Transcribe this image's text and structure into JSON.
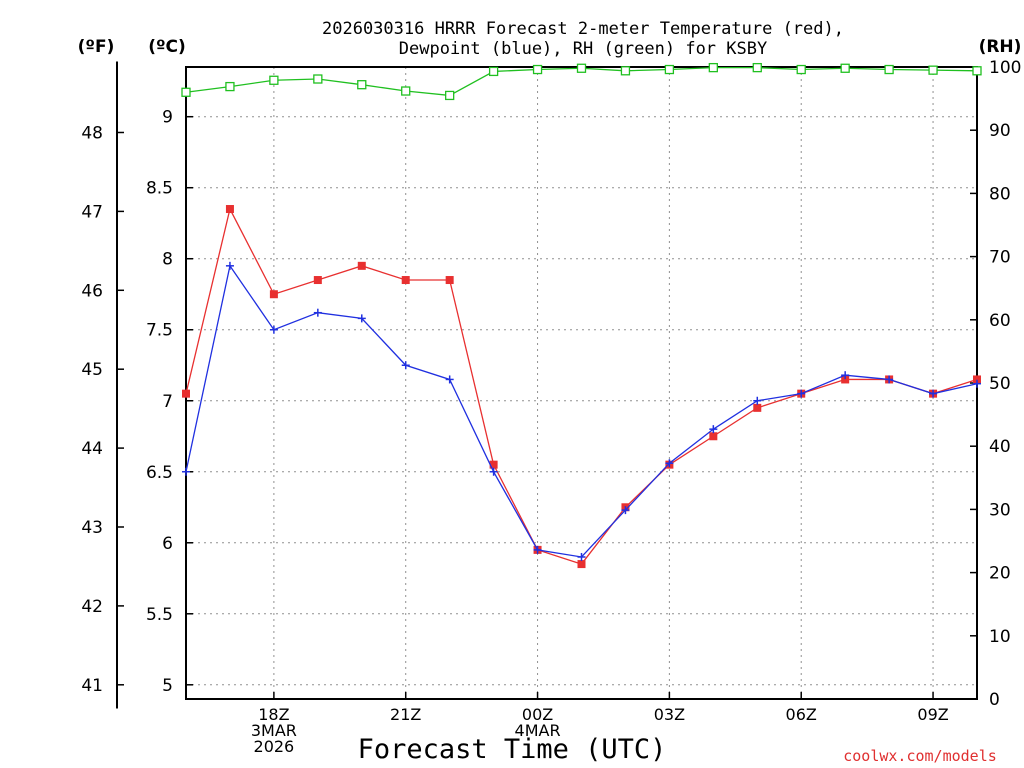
{
  "chart_data": {
    "type": "line",
    "title_line1": "2026030316 HRRR Forecast 2-meter Temperature (red),",
    "title_line2": "Dewpoint (blue), RH (green) for KSBY",
    "left_outer_unit": "(ºF)",
    "left_inner_unit": "(ºC)",
    "right_unit": "(RH)",
    "xlabel": "Forecast Time (UTC)",
    "credit": "coolwx.com/models",
    "x_hours": [
      16,
      17,
      18,
      19,
      20,
      21,
      22,
      23,
      24,
      25,
      26,
      27,
      28,
      29,
      30,
      31,
      32,
      33,
      34
    ],
    "x_range": [
      16,
      34
    ],
    "x_ticks": [
      {
        "hour": 18,
        "lines": [
          "18Z",
          "3MAR",
          "2026"
        ]
      },
      {
        "hour": 21,
        "lines": [
          "21Z"
        ]
      },
      {
        "hour": 24,
        "lines": [
          "00Z",
          "4MAR"
        ]
      },
      {
        "hour": 27,
        "lines": [
          "03Z"
        ]
      },
      {
        "hour": 30,
        "lines": [
          "06Z"
        ]
      },
      {
        "hour": 33,
        "lines": [
          "09Z"
        ]
      }
    ],
    "celsius_range": [
      4.9,
      9.35
    ],
    "celsius_ticks": [
      "5",
      "5.5",
      "6",
      "6.5",
      "7",
      "7.5",
      "8",
      "8.5",
      "9"
    ],
    "fahrenheit_ticks": [
      "41",
      "42",
      "43",
      "44",
      "45",
      "46",
      "47",
      "48"
    ],
    "rh_range": [
      0,
      100
    ],
    "rh_ticks": [
      "0",
      "10",
      "20",
      "30",
      "40",
      "50",
      "60",
      "70",
      "80",
      "90",
      "100"
    ],
    "series": [
      {
        "name": "Temperature",
        "unit": "C",
        "color": "#e83030",
        "values": [
          7.05,
          8.35,
          7.75,
          7.85,
          7.95,
          7.85,
          7.85,
          6.55,
          5.95,
          5.85,
          6.25,
          6.55,
          6.75,
          6.95,
          7.05,
          7.15,
          7.15,
          7.05,
          7.15
        ]
      },
      {
        "name": "Dewpoint",
        "unit": "C",
        "color": "#2030e0",
        "values": [
          6.5,
          7.95,
          7.5,
          7.62,
          7.58,
          7.25,
          7.15,
          6.5,
          5.95,
          5.9,
          6.23,
          6.56,
          6.8,
          7.0,
          7.05,
          7.18,
          7.15,
          7.05,
          7.12
        ]
      },
      {
        "name": "RH",
        "unit": "%",
        "color": "#20c020",
        "values": [
          96.0,
          96.9,
          97.9,
          98.1,
          97.2,
          96.2,
          95.5,
          99.3,
          99.6,
          99.8,
          99.4,
          99.6,
          99.9,
          99.9,
          99.6,
          99.8,
          99.6,
          99.5,
          99.4
        ]
      }
    ]
  }
}
